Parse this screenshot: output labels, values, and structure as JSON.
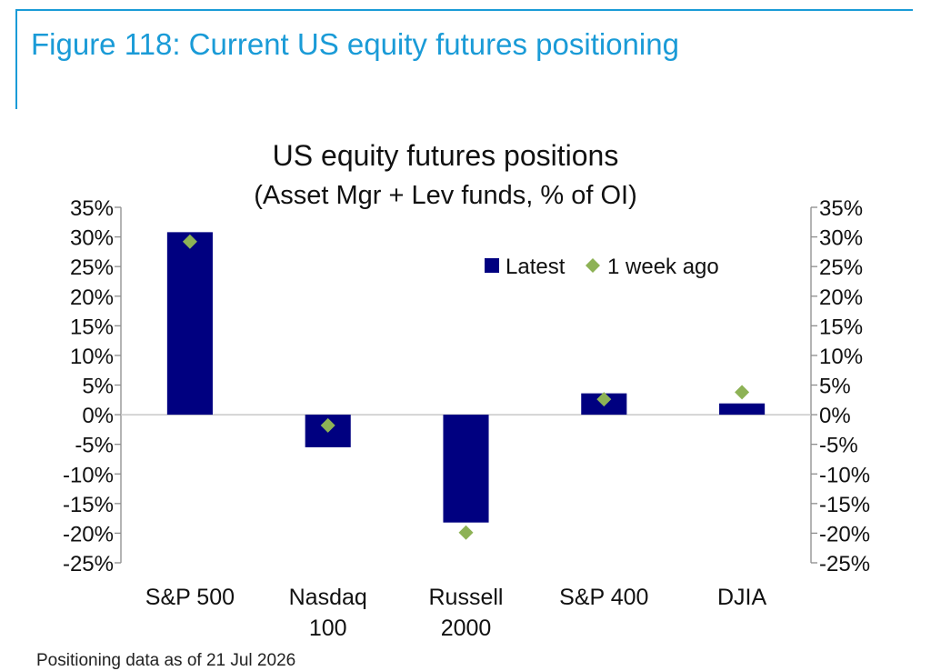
{
  "figure": {
    "title": "Figure 118: Current US equity futures positioning",
    "footnote": "Positioning data as of 21 Jul 2026"
  },
  "chart_data": {
    "type": "bar",
    "title": "US equity futures positions",
    "subtitle": "(Asset Mgr + Lev funds, % of OI)",
    "categories": [
      "S&P 500",
      "Nasdaq 100",
      "Russell 2000",
      "S&P 400",
      "DJIA"
    ],
    "category_lines": [
      [
        "S&P 500"
      ],
      [
        "Nasdaq",
        "100"
      ],
      [
        "Russell",
        "2000"
      ],
      [
        "S&P 400"
      ],
      [
        "DJIA"
      ]
    ],
    "series": [
      {
        "name": "Latest",
        "type": "bar",
        "color": "#000080",
        "values": [
          30.8,
          -5.5,
          -18.2,
          3.6,
          1.9
        ]
      },
      {
        "name": "1 week ago",
        "type": "scatter",
        "marker": "diamond",
        "color": "#8db255",
        "values": [
          29.2,
          -1.8,
          -19.9,
          2.6,
          3.8
        ]
      }
    ],
    "ylim": [
      -25,
      35
    ],
    "ytick_step": 5,
    "ytick_labels": [
      "35%",
      "30%",
      "25%",
      "20%",
      "15%",
      "10%",
      "5%",
      "0%",
      "-5%",
      "-10%",
      "-15%",
      "-20%",
      "-25%"
    ],
    "secondary_axis": true,
    "grid": false,
    "legend": "top-right"
  }
}
